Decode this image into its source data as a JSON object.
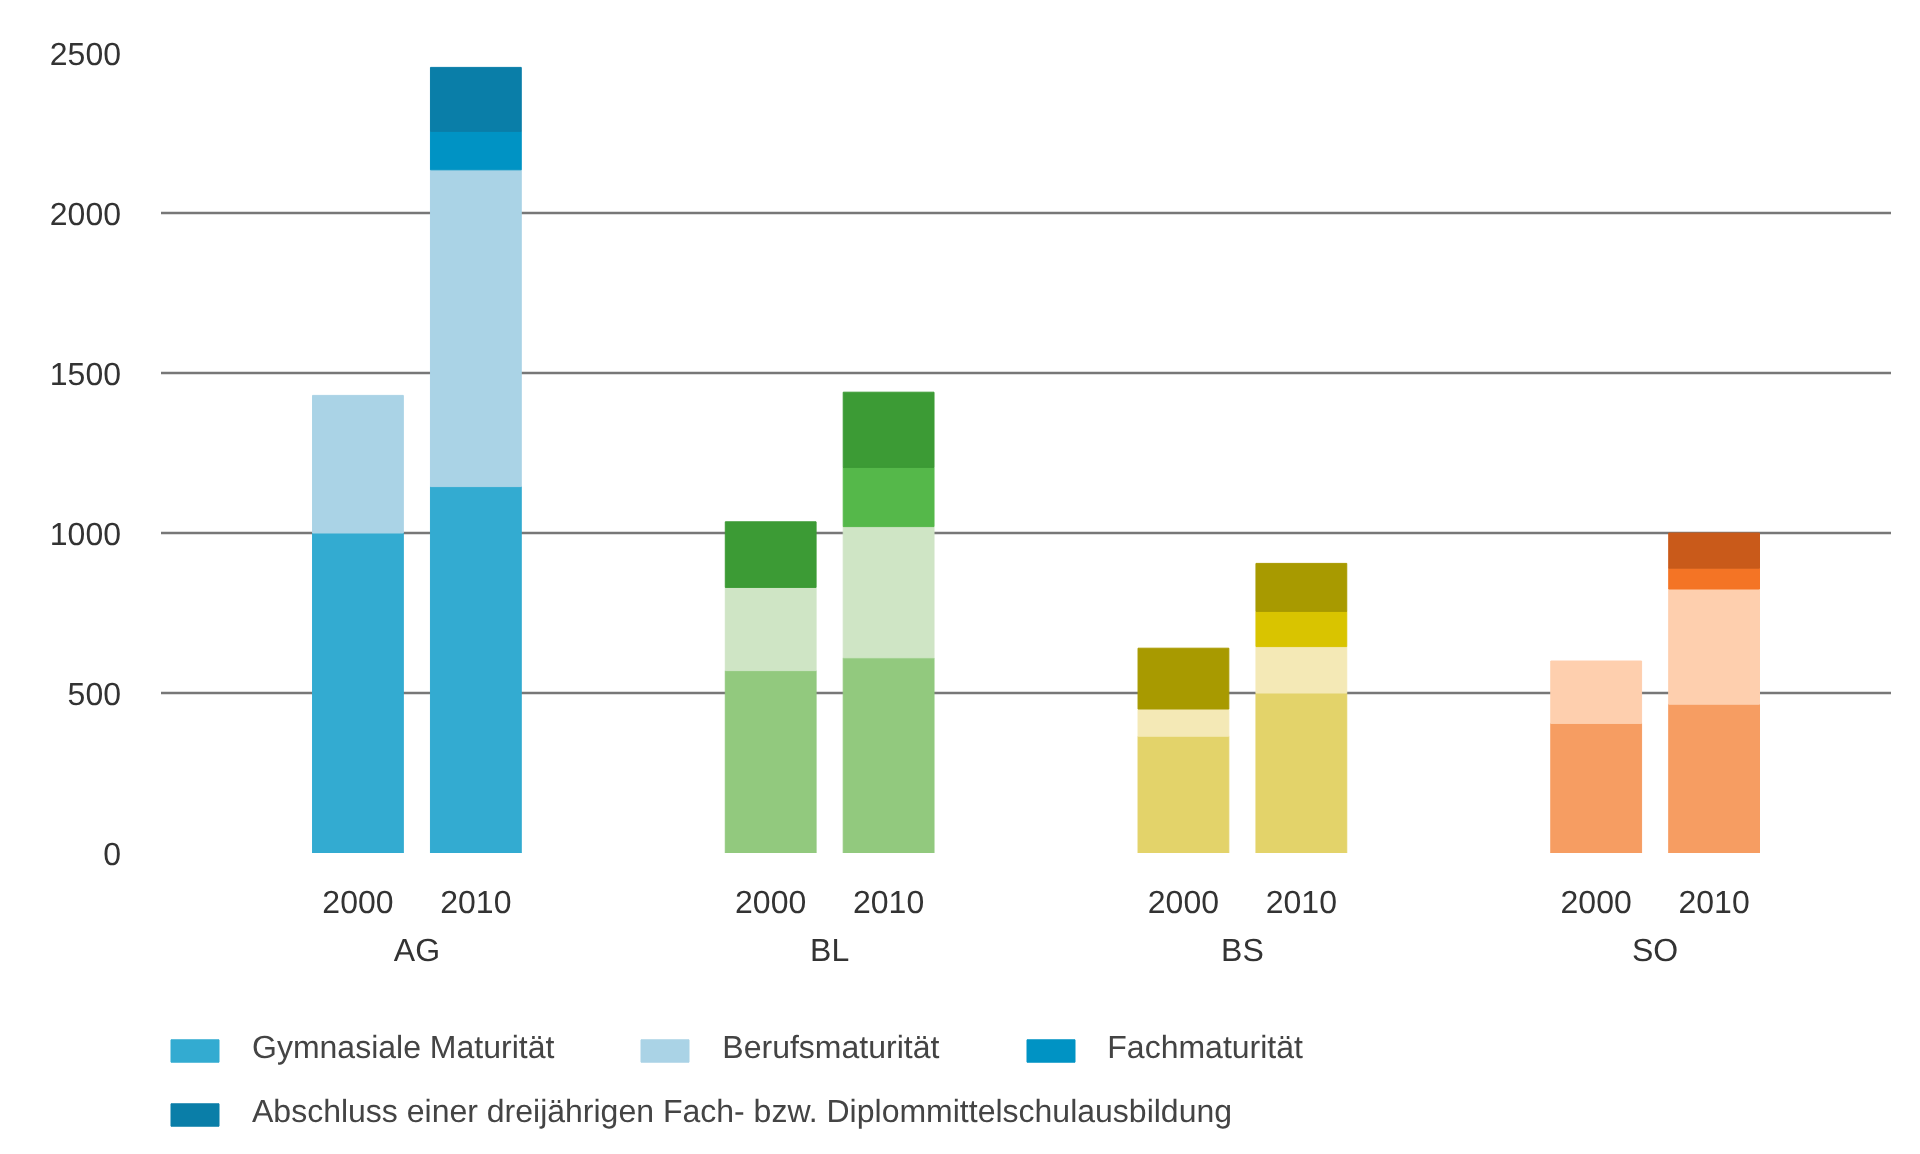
{
  "chart_data": {
    "type": "bar",
    "stacked": true,
    "categories": [
      "2000",
      "2010",
      "2000",
      "2010",
      "2000",
      "2010",
      "2000",
      "2010"
    ],
    "annotations": [
      "AG",
      "BL",
      "BS",
      "SO"
    ],
    "series": [
      {
        "name": "Gymnasiale Maturität",
        "values": [
          1000,
          1145,
          570,
          610,
          365,
          500,
          405,
          465
        ],
        "colors": [
          "#33abd1",
          "#33abd1",
          "#92c97e",
          "#92c97e",
          "#e3d36a",
          "#e3d36a",
          "#f69d62",
          "#f69d62"
        ]
      },
      {
        "name": "Berufsmaturität",
        "values": [
          430,
          990,
          260,
          410,
          85,
          145,
          195,
          360
        ],
        "colors": [
          "#aad3e6",
          "#aad3e6",
          "#cfe5c5",
          "#cfe5c5",
          "#f4e9b6",
          "#f4e9b6",
          "#fecfae",
          "#fecfae"
        ]
      },
      {
        "name": "Fachmaturität",
        "values": [
          null,
          120,
          null,
          185,
          null,
          110,
          null,
          65
        ],
        "colors": [
          "#0093c4",
          "#0093c4",
          "#55b84a",
          "#55b84a",
          "#d9c400",
          "#d9c400",
          "#f47425",
          "#f47425"
        ]
      },
      {
        "name": "Abschluss einer dreijährigen Fach- bzw. Diplommittelschulausbildung",
        "values": [
          null,
          200,
          205,
          235,
          190,
          150,
          null,
          110
        ],
        "colors": [
          "#0a7ea8",
          "#0a7ea8",
          "#3c9b35",
          "#3c9b35",
          "#a89a00",
          "#a89a00",
          "#c95a1a",
          "#c95a1a"
        ]
      }
    ],
    "ylim": [
      0,
      2500
    ],
    "yticks": [
      0,
      500,
      1000,
      1500,
      2000,
      2500
    ],
    "grid": "y",
    "legend": "bottom"
  }
}
